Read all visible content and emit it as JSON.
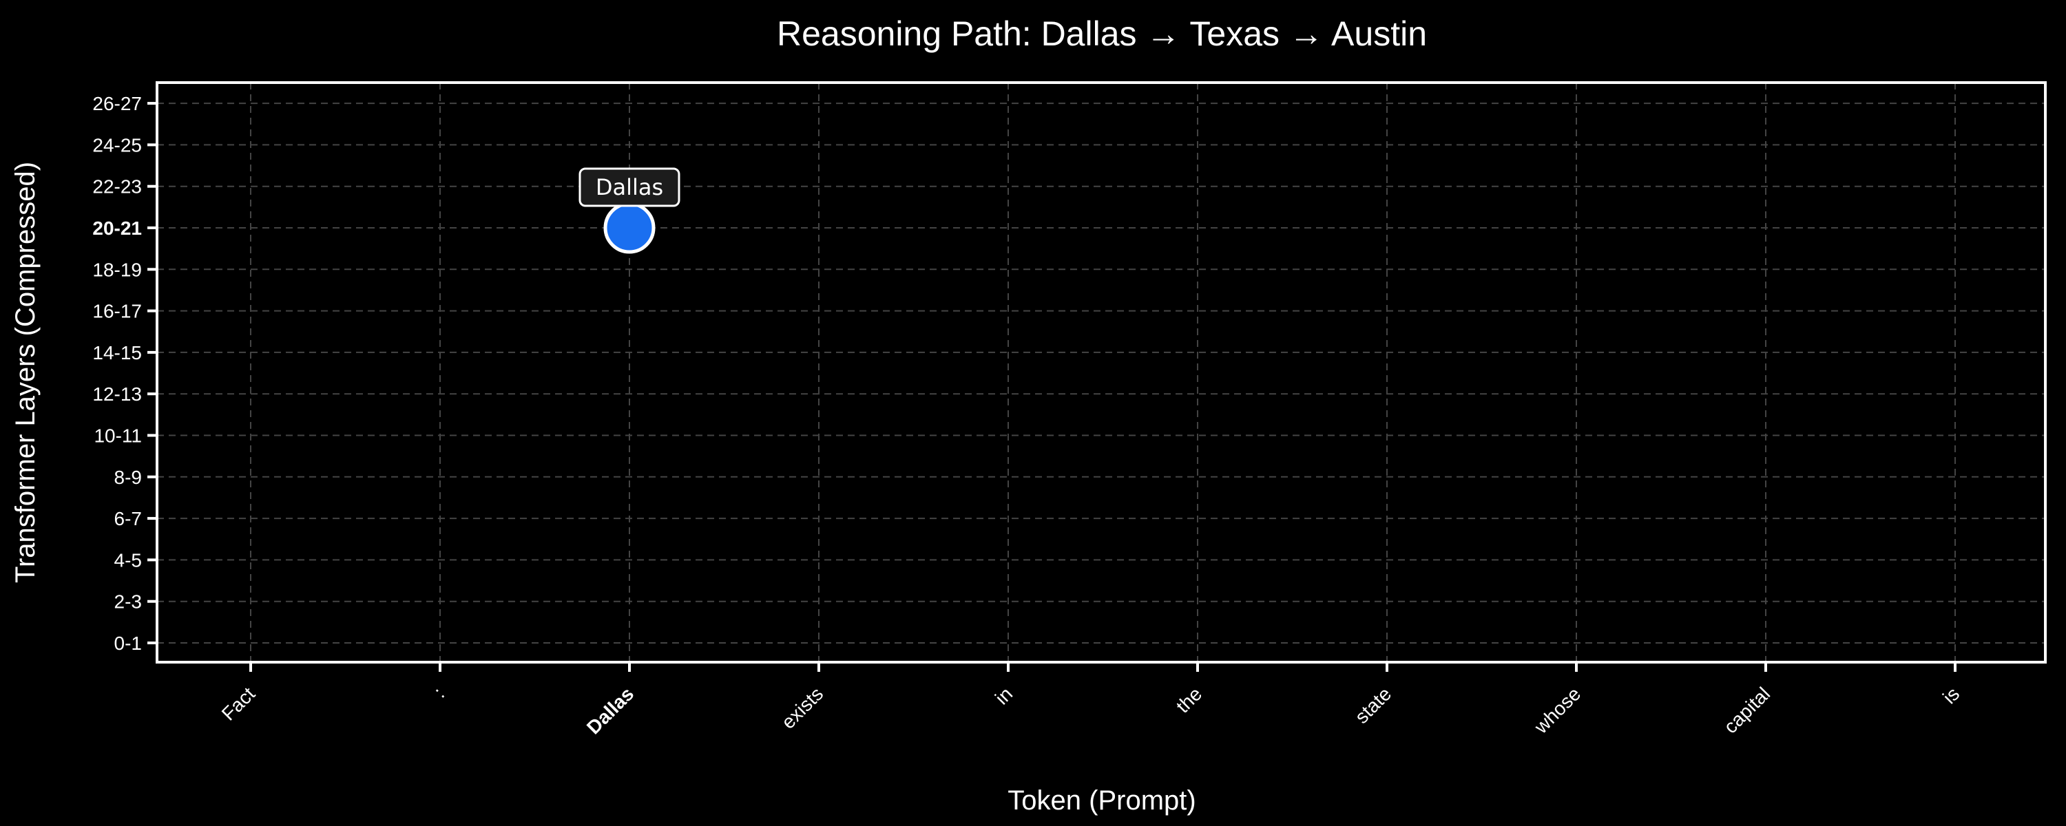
{
  "chart_data": {
    "type": "scatter",
    "title": "Reasoning Path: Dallas → Texas → Austin",
    "xlabel": "Token (Prompt)",
    "ylabel": "Transformer Layers (Compressed)",
    "x_categories": [
      "Fact",
      ":",
      "Dallas",
      "exists",
      "in",
      "the",
      "state",
      "whose",
      "capital",
      "is"
    ],
    "y_categories": [
      "0-1",
      "2-3",
      "4-5",
      "6-7",
      "8-9",
      "10-11",
      "12-13",
      "14-15",
      "16-17",
      "18-19",
      "20-21",
      "22-23",
      "24-25",
      "26-27"
    ],
    "highlight_x": "Dallas",
    "highlight_y": "20-21",
    "points": [
      {
        "x": "Dallas",
        "y": "20-21",
        "label": "Dallas"
      }
    ],
    "grid": true,
    "colors": {
      "background": "#000000",
      "axes": "#ffffff",
      "grid": "#444444",
      "point_fill": "#1a6ff0",
      "point_edge": "#ffffff",
      "highlight_x": "#f05a50",
      "highlight_y": "#1de9d8",
      "annotation_bg": "#1c1c1c"
    }
  }
}
